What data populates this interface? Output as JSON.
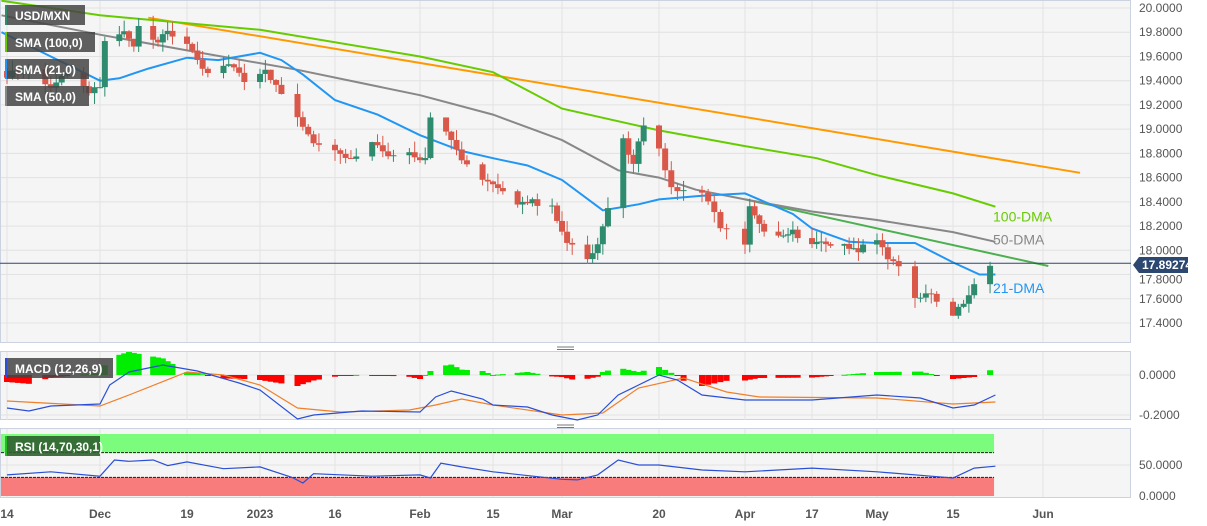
{
  "chart_data": {
    "type": "candlestick",
    "symbol": "USD/MXN",
    "legend": [
      "USD/MXN",
      "SMA (100,0)",
      "SMA (21,0)",
      "SMA (50,0)"
    ],
    "day_origin": "2022-11-14",
    "x_tick_labels": [
      {
        "day": 0,
        "label": "14"
      },
      {
        "day": 17,
        "label": "Dec"
      },
      {
        "day": 35,
        "label": "19"
      },
      {
        "day": 49,
        "label": "2023"
      },
      {
        "day": 63,
        "label": "16"
      },
      {
        "day": 79,
        "label": "Feb"
      },
      {
        "day": 93,
        "label": "15"
      },
      {
        "day": 107,
        "label": "Mar"
      },
      {
        "day": 126,
        "label": "20"
      },
      {
        "day": 140,
        "label": "Apr"
      },
      {
        "day": 154,
        "label": "17"
      },
      {
        "day": 168,
        "label": "May"
      },
      {
        "day": 182,
        "label": "15"
      },
      {
        "day": 199,
        "label": "Jun"
      }
    ],
    "price_ticks": [
      "20.0000",
      "19.8000",
      "19.6000",
      "19.4000",
      "19.2000",
      "19.0000",
      "18.8000",
      "18.6000",
      "18.4000",
      "18.2000",
      "18.0000",
      "17.8000",
      "17.6000",
      "17.4000"
    ],
    "ylim": [
      17.3,
      20.05
    ],
    "last_price": 17.89274,
    "last_price_label": "17.89274",
    "close_keypoints": [
      [
        0,
        19.45
      ],
      [
        4,
        19.5
      ],
      [
        8,
        19.35
      ],
      [
        11,
        19.45
      ],
      [
        15,
        19.3
      ],
      [
        17,
        19.35
      ],
      [
        18,
        19.72
      ],
      [
        22,
        19.8
      ],
      [
        24,
        19.7
      ],
      [
        25,
        19.86
      ],
      [
        29,
        19.72
      ],
      [
        31,
        19.8
      ],
      [
        35,
        19.7
      ],
      [
        37,
        19.55
      ],
      [
        39,
        19.45
      ],
      [
        43,
        19.55
      ],
      [
        46,
        19.4
      ],
      [
        50,
        19.5
      ],
      [
        52,
        19.35
      ],
      [
        56,
        19.1
      ],
      [
        59,
        18.9
      ],
      [
        63,
        18.85
      ],
      [
        66,
        18.75
      ],
      [
        70,
        18.9
      ],
      [
        73,
        18.8
      ],
      [
        77,
        18.8
      ],
      [
        80,
        18.75
      ],
      [
        81,
        19.1
      ],
      [
        84,
        19.0
      ],
      [
        87,
        18.75
      ],
      [
        91,
        18.6
      ],
      [
        94,
        18.5
      ],
      [
        98,
        18.4
      ],
      [
        101,
        18.4
      ],
      [
        105,
        18.35
      ],
      [
        108,
        18.05
      ],
      [
        112,
        17.95
      ],
      [
        114,
        18.05
      ],
      [
        116,
        18.35
      ],
      [
        119,
        18.9
      ],
      [
        121,
        18.7
      ],
      [
        123,
        19.05
      ],
      [
        126,
        18.85
      ],
      [
        128,
        18.5
      ],
      [
        133,
        18.5
      ],
      [
        136,
        18.2
      ],
      [
        140,
        18.05
      ],
      [
        141,
        18.35
      ],
      [
        143,
        18.2
      ],
      [
        147,
        18.1
      ],
      [
        150,
        18.15
      ],
      [
        154,
        18.05
      ],
      [
        157,
        18.05
      ],
      [
        161,
        18.05
      ],
      [
        164,
        18.0
      ],
      [
        167,
        18.15
      ],
      [
        170,
        17.95
      ],
      [
        172,
        17.85
      ],
      [
        175,
        17.6
      ],
      [
        177,
        17.65
      ],
      [
        180,
        17.55
      ],
      [
        182,
        17.45
      ],
      [
        185,
        17.65
      ],
      [
        187,
        17.75
      ],
      [
        188,
        17.92
      ],
      [
        189,
        17.89
      ]
    ],
    "sma21": [
      [
        -1,
        19.8
      ],
      [
        8,
        19.6
      ],
      [
        17,
        19.4
      ],
      [
        21,
        19.42
      ],
      [
        27,
        19.5
      ],
      [
        35,
        19.59
      ],
      [
        41,
        19.57
      ],
      [
        49,
        19.63
      ],
      [
        53,
        19.57
      ],
      [
        57,
        19.45
      ],
      [
        63,
        19.24
      ],
      [
        71,
        19.12
      ],
      [
        79,
        18.95
      ],
      [
        87,
        18.82
      ],
      [
        93,
        18.76
      ],
      [
        100,
        18.7
      ],
      [
        107,
        18.58
      ],
      [
        115,
        18.33
      ],
      [
        122,
        18.38
      ],
      [
        126,
        18.42
      ],
      [
        133,
        18.45
      ],
      [
        140,
        18.47
      ],
      [
        150,
        18.3
      ],
      [
        154,
        18.18
      ],
      [
        162,
        18.07
      ],
      [
        168,
        18.06
      ],
      [
        175,
        18.06
      ],
      [
        182,
        17.9
      ],
      [
        187,
        17.8
      ],
      [
        190,
        17.8
      ]
    ],
    "sma50": [
      [
        -1,
        19.94
      ],
      [
        17,
        19.78
      ],
      [
        35,
        19.65
      ],
      [
        56,
        19.49
      ],
      [
        79,
        19.28
      ],
      [
        93,
        19.12
      ],
      [
        107,
        18.91
      ],
      [
        118,
        18.66
      ],
      [
        126,
        18.6
      ],
      [
        132,
        18.5
      ],
      [
        140,
        18.42
      ],
      [
        154,
        18.32
      ],
      [
        168,
        18.25
      ],
      [
        182,
        18.15
      ],
      [
        190,
        18.07
      ]
    ],
    "sma100": [
      [
        -1,
        20.06
      ],
      [
        17,
        19.94
      ],
      [
        49,
        19.82
      ],
      [
        79,
        19.6
      ],
      [
        93,
        19.47
      ],
      [
        107,
        19.17
      ],
      [
        126,
        18.99
      ],
      [
        140,
        18.86
      ],
      [
        155,
        18.76
      ],
      [
        168,
        18.62
      ],
      [
        182,
        18.47
      ],
      [
        190,
        18.36
      ]
    ],
    "trendlines": [
      {
        "name": "resistance-long",
        "color": "#ff9900",
        "points": [
          [
            27,
            19.92
          ],
          [
            206,
            18.64
          ]
        ]
      },
      {
        "name": "resistance-short",
        "color": "#4caf50",
        "points": [
          [
            140,
            18.42
          ],
          [
            200,
            17.87
          ]
        ]
      }
    ],
    "ma_labels": [
      {
        "text": "100-DMA",
        "color": "#66cc00",
        "price": 18.28
      },
      {
        "text": "50-DMA",
        "color": "#888888",
        "price": 18.09
      },
      {
        "text": "21-DMA",
        "color": "#2196f3",
        "price": 17.69
      }
    ],
    "macd": {
      "label": "MACD (12,26,9)",
      "ticks": [
        "0.0000",
        "-0.2000"
      ],
      "ylim": [
        -0.25,
        0.1
      ],
      "macd_line": [
        [
          0,
          -0.165
        ],
        [
          4,
          -0.18
        ],
        [
          8,
          -0.155
        ],
        [
          17,
          -0.145
        ],
        [
          19,
          -0.05
        ],
        [
          23,
          0.015
        ],
        [
          30,
          0.05
        ],
        [
          37,
          0.02
        ],
        [
          45,
          -0.04
        ],
        [
          49,
          -0.075
        ],
        [
          56,
          -0.22
        ],
        [
          59,
          -0.2
        ],
        [
          68,
          -0.18
        ],
        [
          79,
          -0.185
        ],
        [
          82,
          -0.11
        ],
        [
          85,
          -0.08
        ],
        [
          91,
          -0.12
        ],
        [
          93,
          -0.15
        ],
        [
          100,
          -0.16
        ],
        [
          105,
          -0.2
        ],
        [
          110,
          -0.225
        ],
        [
          114,
          -0.2
        ],
        [
          118,
          -0.1
        ],
        [
          126,
          0.0
        ],
        [
          129,
          -0.025
        ],
        [
          133,
          -0.1
        ],
        [
          140,
          -0.125
        ],
        [
          154,
          -0.125
        ],
        [
          168,
          -0.1
        ],
        [
          176,
          -0.115
        ],
        [
          182,
          -0.165
        ],
        [
          186,
          -0.15
        ],
        [
          190,
          -0.1
        ]
      ],
      "signal_line": [
        [
          0,
          -0.13
        ],
        [
          17,
          -0.155
        ],
        [
          23,
          -0.1
        ],
        [
          35,
          0.015
        ],
        [
          42,
          0.0
        ],
        [
          49,
          -0.05
        ],
        [
          56,
          -0.165
        ],
        [
          64,
          -0.185
        ],
        [
          77,
          -0.175
        ],
        [
          82,
          -0.15
        ],
        [
          87,
          -0.12
        ],
        [
          93,
          -0.15
        ],
        [
          107,
          -0.2
        ],
        [
          115,
          -0.19
        ],
        [
          122,
          -0.065
        ],
        [
          130,
          -0.015
        ],
        [
          137,
          -0.085
        ],
        [
          143,
          -0.11
        ],
        [
          168,
          -0.115
        ],
        [
          182,
          -0.145
        ],
        [
          190,
          -0.135
        ]
      ]
    },
    "rsi": {
      "label": "RSI (14,70,30,1)",
      "ticks": [
        "50.0000",
        "0.0000"
      ],
      "overbought": 70,
      "oversold": 30,
      "values": [
        [
          0,
          34
        ],
        [
          8,
          39
        ],
        [
          17,
          32
        ],
        [
          20,
          58
        ],
        [
          23,
          56
        ],
        [
          28,
          58
        ],
        [
          31,
          49
        ],
        [
          35,
          55
        ],
        [
          42,
          44
        ],
        [
          49,
          47
        ],
        [
          55,
          30
        ],
        [
          57,
          21
        ],
        [
          59,
          36
        ],
        [
          70,
          32
        ],
        [
          79,
          34
        ],
        [
          81,
          29
        ],
        [
          83,
          53
        ],
        [
          87,
          47
        ],
        [
          93,
          39
        ],
        [
          107,
          27
        ],
        [
          110,
          26
        ],
        [
          114,
          34
        ],
        [
          118,
          58
        ],
        [
          122,
          50
        ],
        [
          126,
          50
        ],
        [
          133,
          42
        ],
        [
          140,
          39
        ],
        [
          154,
          45
        ],
        [
          168,
          39
        ],
        [
          178,
          32
        ],
        [
          182,
          29
        ],
        [
          186,
          45
        ],
        [
          190,
          48
        ]
      ]
    },
    "colors": {
      "up": "#2e8b6e",
      "down": "#d9584a",
      "sma21": "#2196f3",
      "sma50": "#888888",
      "sma100": "#66cc00",
      "macd": "#2a4fd6",
      "signal": "#f07f2a",
      "hist_up": "#00ee00",
      "hist_down": "#ff0000",
      "rsi": "#2a4fd6"
    }
  }
}
